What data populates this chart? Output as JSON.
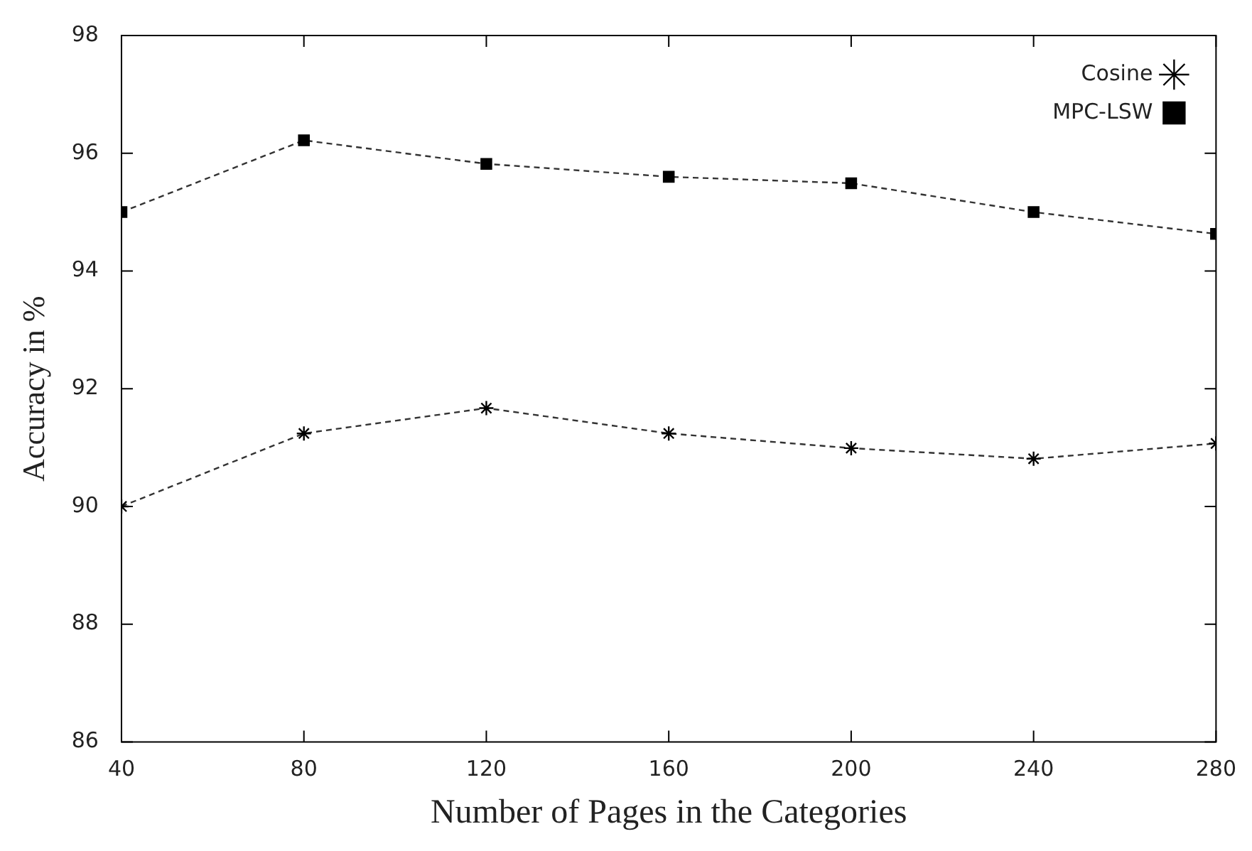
{
  "chart_data": {
    "type": "line",
    "xlabel": "Number of Pages in the Categories",
    "ylabel": "Accuracy in %",
    "x": [
      40,
      80,
      120,
      160,
      200,
      240,
      280
    ],
    "series": [
      {
        "name": "Cosine",
        "color": "#333333",
        "marker": "cross",
        "values": [
          90.0,
          91.24,
          91.67,
          91.24,
          90.99,
          90.81,
          91.07
        ]
      },
      {
        "name": "MPC-LSW",
        "color": "#333333",
        "marker": "square",
        "values": [
          95.0,
          96.22,
          95.82,
          95.6,
          95.49,
          95.0,
          94.63
        ]
      }
    ],
    "xlim": [
      40,
      280
    ],
    "xticks": [
      40,
      80,
      120,
      160,
      200,
      240,
      280
    ],
    "ylim": [
      86,
      98
    ],
    "yticks": [
      86,
      88,
      90,
      92,
      94,
      96,
      98
    ],
    "grid": false,
    "legend": "top right",
    "line_style": "dashed"
  }
}
